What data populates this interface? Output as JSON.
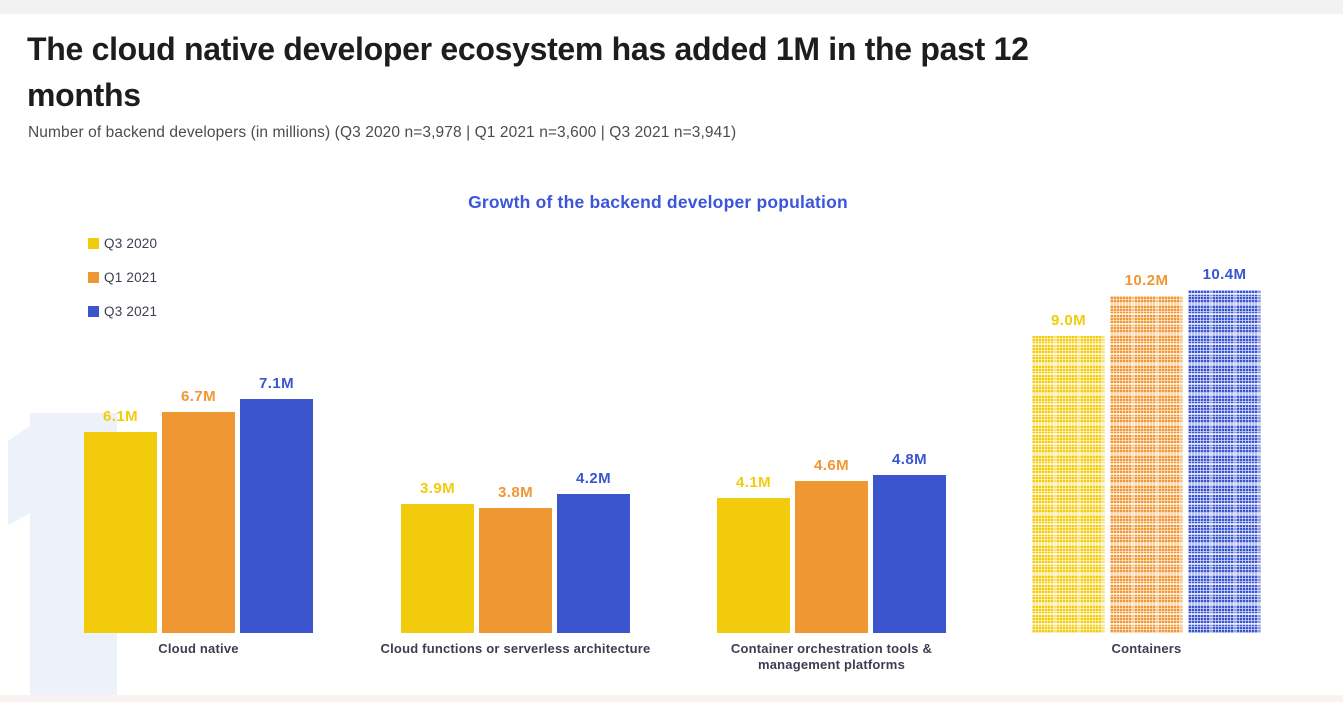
{
  "page": {
    "title": "The cloud native developer ecosystem has added 1M in the past 12\nmonths",
    "subtitle": "Number of backend developers (in millions) (Q3 2020 n=3,978 | Q1 2021 n=3,600 | Q3 2021 n=3,941)"
  },
  "colors": {
    "title_text": "#1D1D1D",
    "subtitle_text": "#4C4C4C",
    "chart_title_accent": "#3B55DB",
    "category_label_text": "#3D3D52",
    "watermark_fill": "#EDF1FA",
    "top_strip": "#F3F2F3",
    "bottom_strip": "#FAF2F0"
  },
  "chart_data": {
    "type": "bar",
    "title": "Growth of the backend developer population",
    "xlabel": "",
    "ylabel": "Number of backend developers (millions)",
    "ylim": [
      0,
      11
    ],
    "grid": false,
    "legend_position": "top-left",
    "value_suffix": "M",
    "categories": [
      "Cloud native",
      "Cloud functions or serverless architecture",
      "Container orchestration tools & management platforms",
      "Containers"
    ],
    "category_label_lines": [
      [
        "Cloud native"
      ],
      [
        "Cloud functions or serverless architecture"
      ],
      [
        "Container orchestration tools &",
        "management platforms"
      ],
      [
        "Containers"
      ]
    ],
    "series": [
      {
        "name": "Q3 2020",
        "color": "#F3CB0D",
        "values": [
          6.1,
          3.9,
          4.1,
          9.0
        ]
      },
      {
        "name": "Q1 2021",
        "color": "#EF9733",
        "values": [
          6.7,
          3.8,
          4.6,
          10.2
        ]
      },
      {
        "name": "Q3 2021",
        "color": "#3A55CE",
        "values": [
          7.1,
          4.2,
          4.8,
          10.4
        ]
      }
    ],
    "data_labels": [
      [
        "6.1M",
        "6.7M",
        "7.1M"
      ],
      [
        "3.9M",
        "3.8M",
        "4.2M"
      ],
      [
        "4.1M",
        "4.6M",
        "4.8M"
      ],
      [
        "9.0M",
        "10.2M",
        "10.4M"
      ]
    ],
    "patterned_category": "Containers",
    "patterned_category_index": 3,
    "watermark_text": "1"
  }
}
